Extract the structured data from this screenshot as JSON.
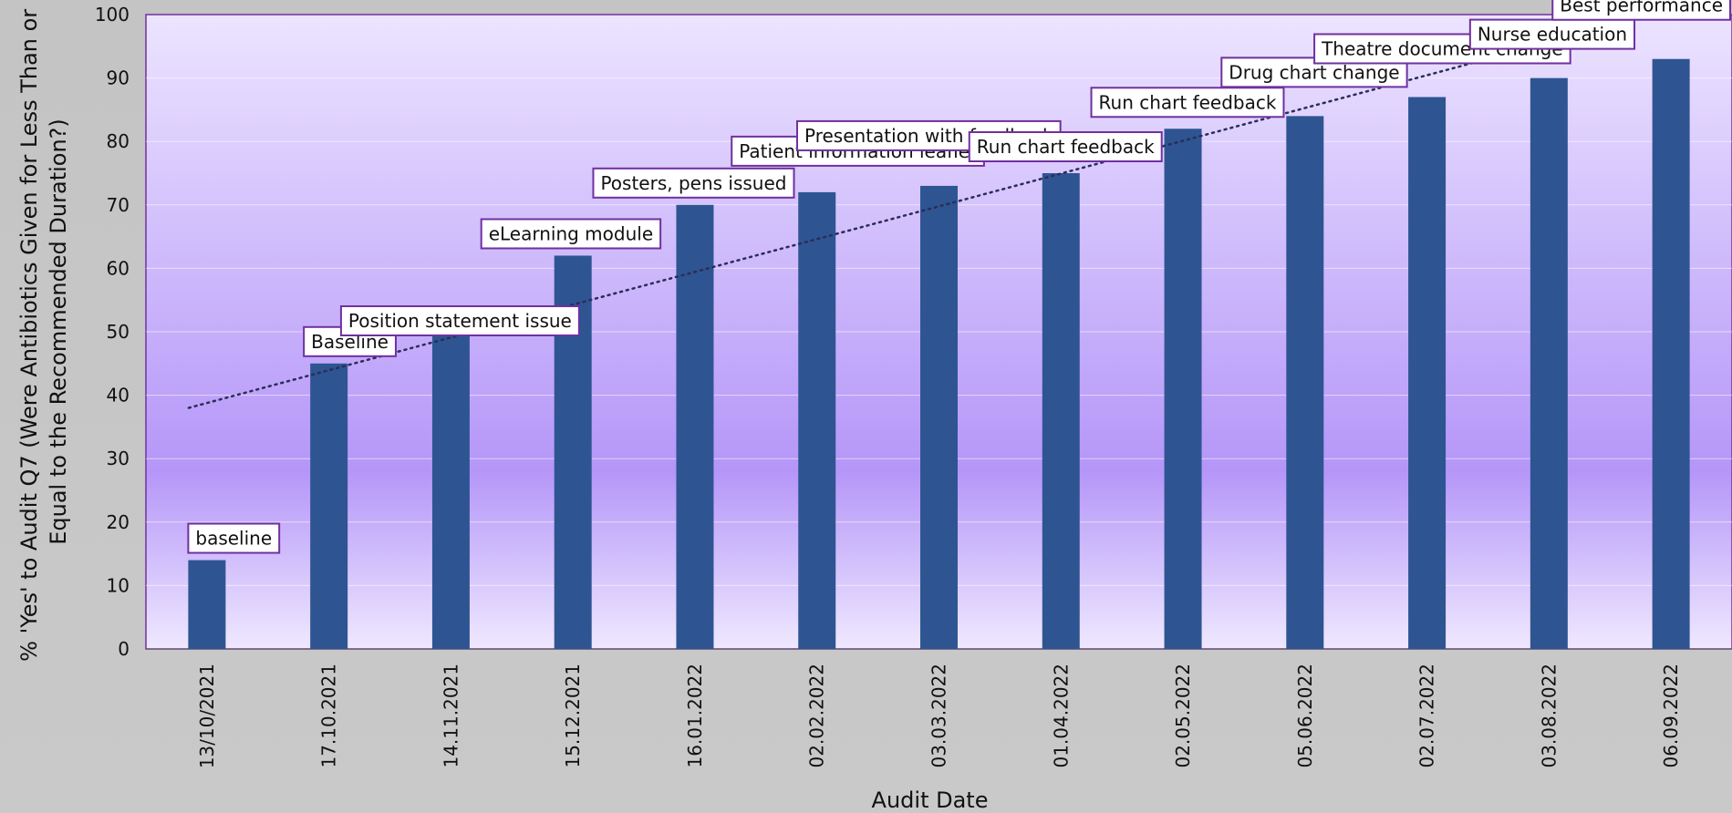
{
  "chart_data": {
    "type": "bar",
    "title": "",
    "xlabel": "Audit Date",
    "ylabel": [
      "% 'Yes' to Audit Q7 (Were Antibiotics Given for Less Than or",
      "Equal to the Recommended Duration?)"
    ],
    "ylim": [
      0,
      100
    ],
    "yticks": [
      0,
      10,
      20,
      30,
      40,
      50,
      60,
      70,
      80,
      90,
      100
    ],
    "grid": true,
    "legend": "none",
    "categories": [
      "13/10/2021",
      "17.10.2021",
      "14.11.2021",
      "15.12.2021",
      "16.01.2022",
      "02.02.2022",
      "03.03.2022",
      "01.04.2022",
      "02.05.2022",
      "05.06.2022",
      "02.07.2022",
      "03.08.2022",
      "06.09.2022"
    ],
    "values": [
      14,
      45,
      50,
      62,
      70,
      72,
      73,
      75,
      82,
      84,
      87,
      90,
      93
    ],
    "annotations": [
      "baseline",
      "Baseline",
      "Position statement issue",
      "eLearning module",
      "Posters, pens issued",
      "Patient information leaflet",
      "Presentation with feedback",
      "Run chart feedback",
      "Run chart feedback",
      "Drug chart change",
      "Theatre document change",
      "Nurse education",
      "Best performance"
    ],
    "trendline": {
      "type": "linear",
      "style": "dotted",
      "from": 38,
      "to": 100
    },
    "colors": {
      "bar": "#2e5592",
      "plot_top": "#ece4ff",
      "plot_mid": "#b596f8",
      "plot_bottom": "#efe8ff",
      "frame": "#7030a0",
      "trend": "#2a2d5a",
      "annotation_border": "#7030a0"
    }
  }
}
